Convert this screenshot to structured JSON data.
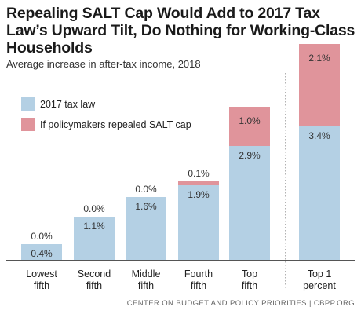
{
  "chart_data": {
    "type": "bar",
    "stacked": true,
    "title": "Repealing SALT Cap Would Add to 2017 Tax Law’s Upward Tilt, Do Nothing for Working-Class Households",
    "subtitle": "Average increase in after-tax income, 2018",
    "source": "CENTER ON BUDGET AND POLICY PRIORITIES | CBPP.ORG",
    "categories": [
      [
        "Lowest",
        "fifth"
      ],
      [
        "Second",
        "fifth"
      ],
      [
        "Middle",
        "fifth"
      ],
      [
        "Fourth",
        "fifth"
      ],
      [
        "Top",
        "fifth"
      ],
      [
        "Top 1",
        "percent"
      ]
    ],
    "series": [
      {
        "name": "2017 tax law",
        "color": "#b4d0e4",
        "values": [
          0.4,
          1.1,
          1.6,
          1.9,
          2.9,
          3.4
        ],
        "labels": [
          "0.4%",
          "1.1%",
          "1.6%",
          "1.9%",
          "2.9%",
          "3.4%"
        ]
      },
      {
        "name": "If policymakers repealed SALT cap",
        "color": "#e0949b",
        "values": [
          0.0,
          0.0,
          0.0,
          0.1,
          1.0,
          2.1
        ],
        "labels": [
          "0.0%",
          "0.0%",
          "0.0%",
          "0.1%",
          "1.0%",
          "2.1%"
        ]
      }
    ],
    "ylim": [
      0,
      5.5
    ],
    "grid": false,
    "legend": "top-left",
    "separator_before_last": true
  }
}
